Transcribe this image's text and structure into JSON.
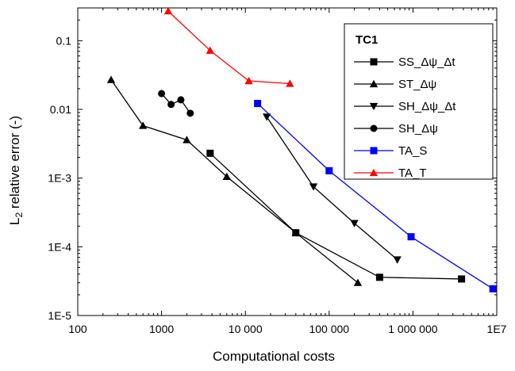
{
  "chart_data": {
    "type": "line",
    "x_scale": "log",
    "y_scale": "log",
    "xlabel": "Computational costs",
    "ylabel_prefix": "L",
    "ylabel_sub": "2",
    "ylabel_suffix": " relative error (-)",
    "xlim": [
      100,
      10000000
    ],
    "ylim": [
      1e-05,
      0.3
    ],
    "x_ticks": [
      {
        "value": 100,
        "label": "100"
      },
      {
        "value": 1000,
        "label": "1000"
      },
      {
        "value": 10000,
        "label": "10 000"
      },
      {
        "value": 100000,
        "label": "100 000"
      },
      {
        "value": 1000000,
        "label": "1 000 000"
      },
      {
        "value": 10000000,
        "label": "1E7"
      }
    ],
    "y_ticks": [
      {
        "value": 1e-05,
        "label": "1E-5"
      },
      {
        "value": 0.0001,
        "label": "1E-4"
      },
      {
        "value": 0.001,
        "label": "1E-3"
      },
      {
        "value": 0.01,
        "label": "0.01"
      },
      {
        "value": 0.1,
        "label": "0.1"
      }
    ],
    "legend_title": "TC1",
    "legend_position": "top-right",
    "grid": false,
    "series": [
      {
        "name": "SS_Δψ_Δt",
        "color": "#000000",
        "marker": "square",
        "points": [
          [
            3800,
            0.0023
          ],
          [
            40000,
            0.00016
          ],
          [
            400000,
            3.6e-05
          ],
          [
            3800000,
            3.4e-05
          ]
        ]
      },
      {
        "name": "ST_Δψ",
        "color": "#000000",
        "marker": "triangle-up",
        "points": [
          [
            250,
            0.027
          ],
          [
            600,
            0.0058
          ],
          [
            2000,
            0.0036
          ],
          [
            6000,
            0.00105
          ],
          [
            40000,
            0.00016
          ],
          [
            220000,
            3e-05
          ]
        ]
      },
      {
        "name": "SH_Δψ_Δt",
        "color": "#000000",
        "marker": "triangle-down",
        "points": [
          [
            18000,
            0.0078
          ],
          [
            65000,
            0.00075
          ],
          [
            200000,
            0.00022
          ],
          [
            650000,
            6.5e-05
          ]
        ]
      },
      {
        "name": "SH_Δψ",
        "color": "#000000",
        "marker": "circle",
        "points": [
          [
            1000,
            0.017
          ],
          [
            1300,
            0.0118
          ],
          [
            1700,
            0.0138
          ],
          [
            2200,
            0.0088
          ]
        ]
      },
      {
        "name": "TA_S",
        "color": "#0000ff",
        "marker": "square",
        "points": [
          [
            14000,
            0.0122
          ],
          [
            100000,
            0.00128
          ],
          [
            950000,
            0.00014
          ],
          [
            9000000,
            2.45e-05
          ]
        ]
      },
      {
        "name": "TA_T",
        "color": "#ff0000",
        "marker": "triangle-up",
        "points": [
          [
            1200,
            0.27
          ],
          [
            3800,
            0.072
          ],
          [
            11000,
            0.026
          ],
          [
            34000,
            0.0237
          ]
        ]
      }
    ]
  }
}
